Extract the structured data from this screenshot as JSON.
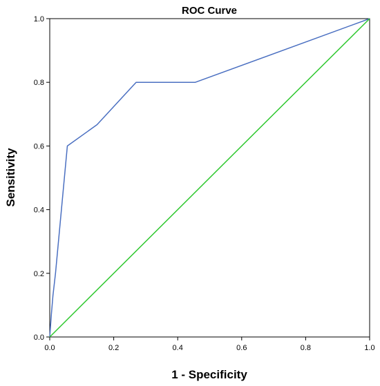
{
  "chart_data": {
    "type": "line",
    "title": "ROC Curve",
    "xlabel": "1 - Specificity",
    "ylabel": "Sensitivity",
    "xlim": [
      0.0,
      1.0
    ],
    "ylim": [
      0.0,
      1.0
    ],
    "grid": false,
    "x_ticks": [
      "0.0",
      "0.2",
      "0.4",
      "0.6",
      "0.8",
      "1.0"
    ],
    "y_ticks": [
      "0.0",
      "0.2",
      "0.4",
      "0.6",
      "0.8",
      "1.0"
    ],
    "x_tick_values": [
      0.0,
      0.2,
      0.4,
      0.6,
      0.8,
      1.0
    ],
    "y_tick_values": [
      0.0,
      0.2,
      0.4,
      0.6,
      0.8,
      1.0
    ],
    "series": [
      {
        "color": "#4a6fc1",
        "x": [
          0.0,
          0.005,
          0.01,
          0.018,
          0.055,
          0.148,
          0.27,
          0.455,
          1.0
        ],
        "y": [
          0.0,
          0.07,
          0.13,
          0.2,
          0.6,
          0.667,
          0.8,
          0.8,
          1.0
        ]
      },
      {
        "color": "#2ec82e",
        "x": [
          0.0,
          1.0
        ],
        "y": [
          0.0,
          1.0
        ]
      }
    ]
  }
}
